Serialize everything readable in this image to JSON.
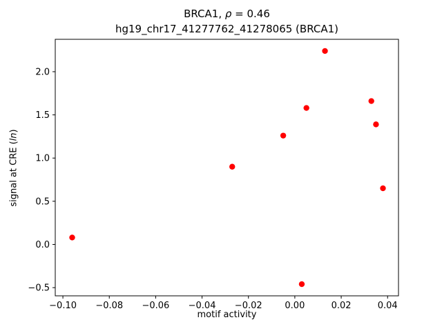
{
  "title": {
    "line1_prefix": "BRCA1, ",
    "line1_rho": "ρ",
    "line1_suffix": " = 0.46",
    "line2": "hg19_chr17_41277762_41278065 (BRCA1)"
  },
  "axes": {
    "xlabel": "motif activity",
    "ylabel_prefix": "signal at CRE (",
    "ylabel_italic": "ln",
    "ylabel_suffix": ")"
  },
  "chart_data": {
    "type": "scatter",
    "title": "BRCA1, ρ = 0.46\nhg19_chr17_41277762_41278065 (BRCA1)",
    "xlabel": "motif activity",
    "ylabel": "signal at CRE (ln)",
    "point_color": "#ff0000",
    "points": [
      {
        "x": -0.096,
        "y": 0.08
      },
      {
        "x": -0.027,
        "y": 0.9
      },
      {
        "x": -0.005,
        "y": 1.26
      },
      {
        "x": 0.003,
        "y": -0.46
      },
      {
        "x": 0.005,
        "y": 1.58
      },
      {
        "x": 0.013,
        "y": 2.24
      },
      {
        "x": 0.033,
        "y": 1.66
      },
      {
        "x": 0.035,
        "y": 1.39
      },
      {
        "x": 0.038,
        "y": 0.65
      }
    ],
    "xlim": [
      -0.1033,
      0.0447
    ],
    "ylim": [
      -0.595,
      2.375
    ],
    "xticks": [
      -0.1,
      -0.08,
      -0.06,
      -0.04,
      -0.02,
      0.0,
      0.02,
      0.04
    ],
    "yticks": [
      -0.5,
      0.0,
      0.5,
      1.0,
      1.5,
      2.0
    ],
    "x_decimals": 2,
    "y_decimals": 1,
    "grid": false,
    "legend": "none",
    "marker_radius": 4.2
  }
}
